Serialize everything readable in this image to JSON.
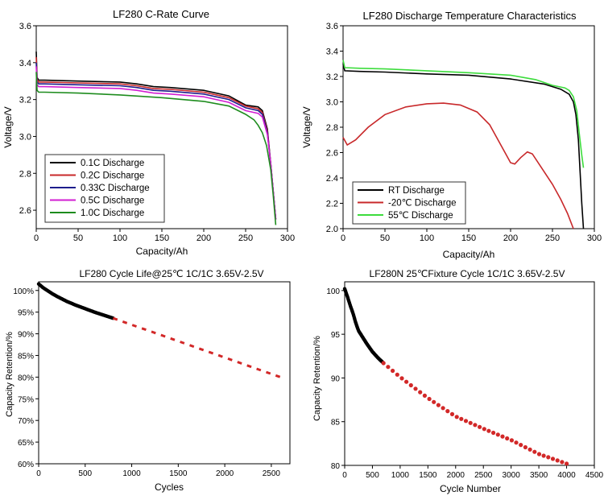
{
  "colors": {
    "axis": "#000000",
    "legend_border": "#333333",
    "black_series": "#000000",
    "red_series": "#c8282a",
    "blue_series": "#1e1e8c",
    "magenta_series": "#d21ed2",
    "green_series": "#1e8c1e",
    "bright_green_series": "#3cdc3c",
    "cycle_fitted": "#000000",
    "cycle_projected": "#d22828"
  },
  "chart_data": [
    {
      "id": "crate",
      "type": "line",
      "title": "LF280 C-Rate Curve",
      "xlabel": "Capacity/Ah",
      "ylabel": "Voltage/V",
      "xlim": [
        0,
        300
      ],
      "ylim": [
        2.5,
        3.6
      ],
      "xticks": [
        "0",
        "50",
        "100",
        "150",
        "200",
        "250",
        "300"
      ],
      "yticks": [
        "2.6",
        "2.8",
        "3.0",
        "3.2",
        "3.4",
        "3.6"
      ],
      "legend_position": "bottom-left",
      "series": [
        {
          "name": "0.1C   Discharge",
          "color": "#000000",
          "points": [
            [
              0,
              3.46
            ],
            [
              1,
              3.32
            ],
            [
              3,
              3.305
            ],
            [
              10,
              3.305
            ],
            [
              50,
              3.3
            ],
            [
              100,
              3.295
            ],
            [
              120,
              3.285
            ],
            [
              140,
              3.27
            ],
            [
              160,
              3.265
            ],
            [
              200,
              3.25
            ],
            [
              230,
              3.22
            ],
            [
              250,
              3.17
            ],
            [
              265,
              3.16
            ],
            [
              270,
              3.14
            ],
            [
              276,
              3.04
            ],
            [
              280,
              2.85
            ],
            [
              283,
              2.7
            ],
            [
              286,
              2.55
            ]
          ]
        },
        {
          "name": "0.2C   Discharge",
          "color": "#c8282a",
          "points": [
            [
              0,
              3.43
            ],
            [
              1,
              3.31
            ],
            [
              3,
              3.295
            ],
            [
              10,
              3.295
            ],
            [
              50,
              3.29
            ],
            [
              100,
              3.285
            ],
            [
              120,
              3.275
            ],
            [
              140,
              3.26
            ],
            [
              160,
              3.255
            ],
            [
              200,
              3.24
            ],
            [
              230,
              3.21
            ],
            [
              250,
              3.165
            ],
            [
              265,
              3.15
            ],
            [
              270,
              3.13
            ],
            [
              276,
              3.03
            ],
            [
              280,
              2.85
            ],
            [
              283,
              2.7
            ],
            [
              286,
              2.55
            ]
          ]
        },
        {
          "name": "0.33C Discharge",
          "color": "#1e1e8c",
          "points": [
            [
              0,
              3.4
            ],
            [
              1,
              3.295
            ],
            [
              3,
              3.285
            ],
            [
              10,
              3.285
            ],
            [
              50,
              3.28
            ],
            [
              100,
              3.275
            ],
            [
              120,
              3.265
            ],
            [
              140,
              3.25
            ],
            [
              160,
              3.245
            ],
            [
              200,
              3.23
            ],
            [
              230,
              3.2
            ],
            [
              250,
              3.155
            ],
            [
              265,
              3.14
            ],
            [
              270,
              3.12
            ],
            [
              276,
              3.02
            ],
            [
              280,
              2.85
            ],
            [
              283,
              2.7
            ],
            [
              286,
              2.55
            ]
          ]
        },
        {
          "name": "0.5C   Discharge",
          "color": "#d21ed2",
          "points": [
            [
              0,
              3.38
            ],
            [
              1,
              3.28
            ],
            [
              3,
              3.27
            ],
            [
              10,
              3.27
            ],
            [
              50,
              3.265
            ],
            [
              100,
              3.26
            ],
            [
              120,
              3.25
            ],
            [
              140,
              3.235
            ],
            [
              160,
              3.23
            ],
            [
              200,
              3.215
            ],
            [
              230,
              3.185
            ],
            [
              250,
              3.14
            ],
            [
              265,
              3.125
            ],
            [
              270,
              3.105
            ],
            [
              276,
              3.01
            ],
            [
              280,
              2.85
            ],
            [
              283,
              2.7
            ],
            [
              286,
              2.55
            ]
          ]
        },
        {
          "name": "1.0C   Discharge",
          "color": "#1e8c1e",
          "points": [
            [
              0,
              3.35
            ],
            [
              1,
              3.25
            ],
            [
              3,
              3.24
            ],
            [
              10,
              3.24
            ],
            [
              50,
              3.235
            ],
            [
              100,
              3.225
            ],
            [
              150,
              3.21
            ],
            [
              200,
              3.19
            ],
            [
              230,
              3.165
            ],
            [
              250,
              3.12
            ],
            [
              260,
              3.09
            ],
            [
              265,
              3.06
            ],
            [
              270,
              3.02
            ],
            [
              275,
              2.95
            ],
            [
              280,
              2.82
            ],
            [
              283,
              2.68
            ],
            [
              286,
              2.52
            ]
          ]
        }
      ]
    },
    {
      "id": "temp",
      "type": "line",
      "title": "LF280 Discharge Temperature Characteristics",
      "xlabel": "Capacity/Ah",
      "ylabel": "Voltage/V",
      "xlim": [
        0,
        300
      ],
      "ylim": [
        2.0,
        3.6
      ],
      "xticks": [
        "0",
        "50",
        "100",
        "150",
        "200",
        "250",
        "300"
      ],
      "yticks": [
        "2.0",
        "2.2",
        "2.4",
        "2.6",
        "2.8",
        "3.0",
        "3.2",
        "3.4",
        "3.6"
      ],
      "legend_position": "bottom-left",
      "series": [
        {
          "name": "RT        Discharge",
          "color": "#000000",
          "points": [
            [
              0,
              3.3
            ],
            [
              2,
              3.245
            ],
            [
              20,
              3.24
            ],
            [
              50,
              3.235
            ],
            [
              100,
              3.22
            ],
            [
              150,
              3.21
            ],
            [
              200,
              3.18
            ],
            [
              240,
              3.14
            ],
            [
              260,
              3.1
            ],
            [
              270,
              3.06
            ],
            [
              275,
              3.0
            ],
            [
              278,
              2.9
            ],
            [
              281,
              2.7
            ],
            [
              283,
              2.45
            ],
            [
              285,
              2.2
            ],
            [
              287,
              2.0
            ]
          ]
        },
        {
          "name": "-20℃   Discharge",
          "color": "#c8282a",
          "points": [
            [
              0,
              2.72
            ],
            [
              5,
              2.66
            ],
            [
              15,
              2.7
            ],
            [
              30,
              2.8
            ],
            [
              50,
              2.9
            ],
            [
              75,
              2.96
            ],
            [
              100,
              2.985
            ],
            [
              120,
              2.99
            ],
            [
              140,
              2.975
            ],
            [
              160,
              2.92
            ],
            [
              175,
              2.82
            ],
            [
              185,
              2.7
            ],
            [
              195,
              2.58
            ],
            [
              200,
              2.52
            ],
            [
              205,
              2.51
            ],
            [
              212,
              2.56
            ],
            [
              220,
              2.605
            ],
            [
              226,
              2.59
            ],
            [
              235,
              2.5
            ],
            [
              250,
              2.35
            ],
            [
              260,
              2.23
            ],
            [
              268,
              2.12
            ],
            [
              275,
              2.0
            ]
          ]
        },
        {
          "name": "55℃    Discharge",
          "color": "#3cdc3c",
          "points": [
            [
              0,
              3.33
            ],
            [
              2,
              3.27
            ],
            [
              20,
              3.265
            ],
            [
              50,
              3.26
            ],
            [
              100,
              3.245
            ],
            [
              150,
              3.23
            ],
            [
              200,
              3.21
            ],
            [
              230,
              3.175
            ],
            [
              250,
              3.13
            ],
            [
              265,
              3.11
            ],
            [
              270,
              3.09
            ],
            [
              275,
              3.04
            ],
            [
              279,
              2.93
            ],
            [
              282,
              2.75
            ],
            [
              285,
              2.58
            ],
            [
              287,
              2.48
            ]
          ]
        }
      ]
    },
    {
      "id": "cycle1",
      "type": "scatter",
      "title": "LF280  Cycle Life@25℃ 1C/1C 3.65V-2.5V",
      "xlabel": "Cycles",
      "ylabel": "Capacity Retention/%",
      "xlim": [
        0,
        2700
      ],
      "ylim": [
        60,
        102
      ],
      "xticks": [
        "0",
        "500",
        "1000",
        "1500",
        "2000",
        "2500"
      ],
      "yticks": [
        "60%",
        "65%",
        "70%",
        "75%",
        "80%",
        "85%",
        "90%",
        "95%",
        "100%"
      ],
      "measured": [
        [
          0,
          101.5
        ],
        [
          50,
          100.6
        ],
        [
          100,
          99.9
        ],
        [
          150,
          99.2
        ],
        [
          200,
          98.6
        ],
        [
          300,
          97.5
        ],
        [
          400,
          96.6
        ],
        [
          500,
          95.8
        ],
        [
          600,
          95.0
        ],
        [
          700,
          94.3
        ],
        [
          800,
          93.6
        ]
      ],
      "projected": [
        [
          800,
          93.6
        ],
        [
          2650,
          79.6
        ]
      ]
    },
    {
      "id": "cycle2",
      "type": "scatter",
      "title": "LF280N 25℃Fixture Cycle 1C/1C 3.65V-2.5V",
      "xlabel": "Cycle Number",
      "ylabel": "Capacity Retention/%",
      "xlim": [
        0,
        4500
      ],
      "ylim": [
        80,
        101
      ],
      "xticks": [
        "0",
        "500",
        "1000",
        "1500",
        "2000",
        "2500",
        "3000",
        "3500",
        "4000",
        "4500"
      ],
      "yticks": [
        "80",
        "85",
        "90",
        "95",
        "100"
      ],
      "measured": [
        [
          0,
          100.2
        ],
        [
          50,
          99.3
        ],
        [
          100,
          98.3
        ],
        [
          150,
          97.4
        ],
        [
          200,
          96.3
        ],
        [
          250,
          95.4
        ],
        [
          300,
          94.9
        ],
        [
          400,
          93.9
        ],
        [
          500,
          93.0
        ],
        [
          600,
          92.3
        ],
        [
          700,
          91.7
        ]
      ],
      "projected": [
        [
          700,
          91.7
        ],
        [
          1000,
          90.1
        ],
        [
          1500,
          87.7
        ],
        [
          2000,
          85.6
        ],
        [
          2500,
          84.2
        ],
        [
          3000,
          82.9
        ],
        [
          3500,
          81.3
        ],
        [
          4000,
          80.2
        ]
      ]
    }
  ]
}
